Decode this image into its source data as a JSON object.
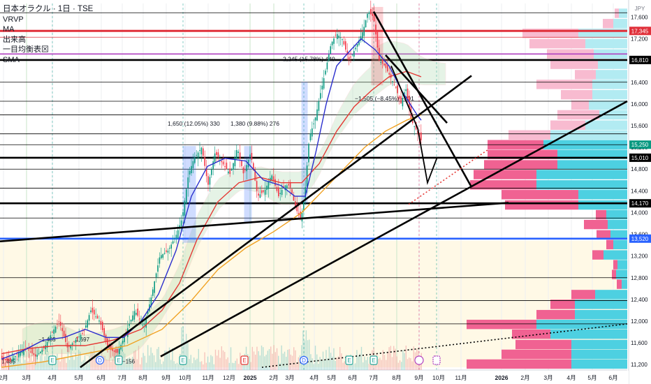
{
  "legend": {
    "title": "日本オラクル · 1日 · TSE",
    "items": [
      "VRVP",
      "MA",
      "出来高",
      "一目均衡表",
      "SMA"
    ],
    "box_glyph": "⊠"
  },
  "currency": "JPY",
  "colors": {
    "up": "#089981",
    "down": "#f23645",
    "ma_blue": "#2a2ecd",
    "ma_red": "#e53935",
    "ma_orange": "#f0a020",
    "bg_band": "#fff9e6",
    "vp_pink": "#f06292",
    "vp_cyan": "#4dd0e1",
    "vp_pink_light": "#f8bbd0",
    "vp_cyan_light": "#b2ebf2",
    "level_red": "#e0303a",
    "level_purple": "#b040c0",
    "level_blue": "#2962ff",
    "measure_blue": "#2962ff",
    "measure_red": "#f23645"
  },
  "chart_data": {
    "type": "candlestick",
    "ylim": [
      11100,
      17850
    ],
    "y_ticks": [
      11200,
      11600,
      12000,
      12400,
      12800,
      13200,
      13600,
      14000,
      14400,
      14800,
      15200,
      15600,
      16000,
      16400,
      16800,
      17200,
      17600
    ],
    "x_labels": [
      "2月",
      "3月",
      "4月",
      "5月",
      "6月",
      "7月",
      "8月",
      "9月",
      "10月",
      "11月",
      "12月",
      "2025",
      "2月",
      "3月",
      "4月",
      "5月",
      "6月",
      "7月",
      "8月",
      "9月",
      "10月",
      "11月",
      "2026",
      "2月",
      "3月",
      "4月",
      "5月",
      "6月"
    ],
    "price_badges": [
      {
        "label": "17,345",
        "value": 17345,
        "color": "#e0303a"
      },
      {
        "label": "16,810",
        "value": 16810,
        "color": "#000000"
      },
      {
        "label": "15,250",
        "value": 15250,
        "color": "#089981"
      },
      {
        "label": "15,010",
        "value": 15010,
        "color": "#000000"
      },
      {
        "label": "14,170",
        "value": 14170,
        "color": "#000000"
      },
      {
        "label": "13,520",
        "value": 13520,
        "color": "#2962ff"
      }
    ],
    "horizontal_levels": [
      17680,
      17345,
      17230,
      16810,
      16400,
      16050,
      15800,
      15450,
      15250,
      15010,
      14800,
      14450,
      14170,
      13900,
      13520,
      12800,
      12380,
      11950
    ],
    "measurements": [
      {
        "label": "1,650 (12.05%) 330",
        "color": "#2962ff"
      },
      {
        "label": "1,380 (9.88%) 276",
        "color": "#2962ff"
      },
      {
        "label": "2,245 (15.78%) 449",
        "color": "#2962ff"
      },
      {
        "label": "−1,505 (−8.45%) −301",
        "color": "#f23645"
      }
    ],
    "left_edge_labels": [
      "1,485",
      "−1,485",
      "1,697",
      "−156"
    ],
    "event_markers": [
      "E",
      "D",
      "E",
      "E",
      "E",
      "D",
      "E",
      "E"
    ],
    "volume_profile": [
      {
        "price": 17670,
        "total": 18,
        "up": 12
      },
      {
        "price": 17480,
        "total": 35,
        "up": 20
      },
      {
        "price": 17300,
        "total": 150,
        "up": 70
      },
      {
        "price": 17110,
        "total": 140,
        "up": 60
      },
      {
        "price": 16920,
        "total": 115,
        "up": 48
      },
      {
        "price": 16730,
        "total": 110,
        "up": 42
      },
      {
        "price": 16540,
        "total": 75,
        "up": 45
      },
      {
        "price": 16360,
        "total": 130,
        "up": 50
      },
      {
        "price": 16170,
        "total": 95,
        "up": 50
      },
      {
        "price": 15980,
        "total": 80,
        "up": 55
      },
      {
        "price": 15800,
        "total": 100,
        "up": 40
      },
      {
        "price": 15610,
        "total": 110,
        "up": 60
      },
      {
        "price": 15430,
        "total": 170,
        "up": 110
      },
      {
        "price": 15250,
        "total": 200,
        "up": 120
      },
      {
        "price": 15070,
        "total": 200,
        "up": 100
      },
      {
        "price": 14880,
        "total": 205,
        "up": 100
      },
      {
        "price": 14700,
        "total": 220,
        "up": 130
      },
      {
        "price": 14510,
        "total": 225,
        "up": 130
      },
      {
        "price": 14330,
        "total": 180,
        "up": 70
      },
      {
        "price": 14140,
        "total": 175,
        "up": 70
      },
      {
        "price": 13960,
        "total": 45,
        "up": 30
      },
      {
        "price": 13780,
        "total": 62,
        "up": 28
      },
      {
        "price": 13590,
        "total": 44,
        "up": 24
      },
      {
        "price": 13410,
        "total": 30,
        "up": 20
      },
      {
        "price": 13220,
        "total": 50,
        "up": 34
      },
      {
        "price": 13040,
        "total": 20,
        "up": 14
      },
      {
        "price": 12860,
        "total": 22,
        "up": 16
      },
      {
        "price": 12680,
        "total": 15,
        "up": 8
      },
      {
        "price": 12490,
        "total": 80,
        "up": 46
      },
      {
        "price": 12310,
        "total": 110,
        "up": 75
      },
      {
        "price": 12120,
        "total": 130,
        "up": 75
      },
      {
        "price": 11940,
        "total": 230,
        "up": 130
      },
      {
        "price": 11760,
        "total": 165,
        "up": 110
      },
      {
        "price": 11570,
        "total": 160,
        "up": 80
      },
      {
        "price": 11390,
        "total": 180,
        "up": 80
      },
      {
        "price": 11210,
        "total": 230,
        "up": 80
      }
    ],
    "series": {
      "close_path": [
        [
          0,
          11300
        ],
        [
          12,
          11250
        ],
        [
          22,
          11400
        ],
        [
          35,
          11500
        ],
        [
          48,
          11350
        ],
        [
          60,
          11500
        ],
        [
          72,
          11800
        ],
        [
          82,
          12000
        ],
        [
          94,
          11500
        ],
        [
          105,
          11650
        ],
        [
          117,
          11800
        ],
        [
          127,
          12200
        ],
        [
          140,
          12000
        ],
        [
          152,
          11500
        ],
        [
          165,
          11400
        ],
        [
          178,
          11800
        ],
        [
          190,
          12200
        ],
        [
          203,
          11900
        ],
        [
          213,
          12400
        ],
        [
          226,
          13200
        ],
        [
          238,
          13300
        ],
        [
          250,
          13600
        ],
        [
          258,
          13900
        ],
        [
          267,
          14700
        ],
        [
          275,
          15000
        ],
        [
          286,
          15200
        ],
        [
          295,
          14500
        ],
        [
          305,
          15100
        ],
        [
          316,
          14900
        ],
        [
          327,
          14700
        ],
        [
          337,
          15200
        ],
        [
          346,
          14700
        ],
        [
          356,
          15100
        ],
        [
          366,
          14300
        ],
        [
          376,
          14400
        ],
        [
          386,
          14700
        ],
        [
          396,
          14300
        ],
        [
          404,
          14500
        ],
        [
          412,
          14500
        ],
        [
          420,
          14100
        ],
        [
          428,
          13850
        ],
        [
          434,
          14400
        ],
        [
          440,
          15400
        ],
        [
          448,
          15700
        ],
        [
          456,
          16200
        ],
        [
          463,
          16600
        ],
        [
          471,
          17100
        ],
        [
          479,
          17300
        ],
        [
          487,
          17200
        ],
        [
          497,
          16800
        ],
        [
          507,
          17050
        ],
        [
          517,
          17350
        ],
        [
          524,
          17700
        ],
        [
          532,
          17600
        ],
        [
          540,
          16800
        ],
        [
          548,
          16700
        ],
        [
          556,
          16500
        ],
        [
          564,
          16300
        ],
        [
          571,
          16000
        ],
        [
          578,
          16300
        ],
        [
          586,
          15700
        ],
        [
          594,
          15500
        ],
        [
          601,
          15300
        ]
      ],
      "ma_blue": [
        [
          0,
          11300
        ],
        [
          30,
          11450
        ],
        [
          60,
          11650
        ],
        [
          90,
          11700
        ],
        [
          120,
          11850
        ],
        [
          150,
          11700
        ],
        [
          175,
          11700
        ],
        [
          200,
          12000
        ],
        [
          225,
          12500
        ],
        [
          250,
          13300
        ],
        [
          272,
          14300
        ],
        [
          295,
          14850
        ],
        [
          320,
          15000
        ],
        [
          350,
          14950
        ],
        [
          375,
          14600
        ],
        [
          400,
          14500
        ],
        [
          420,
          14300
        ],
        [
          435,
          14300
        ],
        [
          450,
          15100
        ],
        [
          465,
          16000
        ],
        [
          480,
          16700
        ],
        [
          497,
          16950
        ],
        [
          515,
          17200
        ],
        [
          535,
          17000
        ],
        [
          555,
          16700
        ],
        [
          575,
          16200
        ],
        [
          595,
          15800
        ],
        [
          601,
          15700
        ]
      ],
      "ma_red": [
        [
          0,
          11400
        ],
        [
          40,
          11500
        ],
        [
          80,
          11550
        ],
        [
          120,
          11550
        ],
        [
          160,
          11650
        ],
        [
          200,
          11850
        ],
        [
          230,
          12200
        ],
        [
          255,
          12700
        ],
        [
          280,
          13500
        ],
        [
          310,
          14200
        ],
        [
          340,
          14550
        ],
        [
          370,
          14650
        ],
        [
          400,
          14550
        ],
        [
          430,
          14550
        ],
        [
          455,
          14900
        ],
        [
          480,
          15500
        ],
        [
          505,
          15950
        ],
        [
          530,
          16250
        ],
        [
          555,
          16500
        ],
        [
          580,
          16600
        ],
        [
          601,
          16500
        ]
      ],
      "ma_orange": [
        [
          0,
          11150
        ],
        [
          60,
          11250
        ],
        [
          120,
          11400
        ],
        [
          180,
          11550
        ],
        [
          230,
          11850
        ],
        [
          270,
          12350
        ],
        [
          310,
          12950
        ],
        [
          350,
          13350
        ],
        [
          390,
          13650
        ],
        [
          430,
          14000
        ],
        [
          460,
          14400
        ],
        [
          490,
          14800
        ],
        [
          520,
          15200
        ],
        [
          550,
          15500
        ],
        [
          580,
          15700
        ],
        [
          601,
          15800
        ]
      ]
    },
    "trend_lines": [
      {
        "from": [
          0,
          13470
        ],
        "to": [
          728,
          14180
        ]
      },
      {
        "from": [
          115,
          11150
        ],
        "to": [
          675,
          16520
        ]
      },
      {
        "from": [
          230,
          11350
        ],
        "to": [
          898,
          16050
        ]
      },
      {
        "from": [
          535,
          17700
        ],
        "to": [
          675,
          14470
        ]
      },
      {
        "from": [
          552,
          16900
        ],
        "to": [
          640,
          15650
        ]
      },
      {
        "from": [
          375,
          11150
        ],
        "to": [
          898,
          11950
        ],
        "dotted": true
      }
    ]
  }
}
